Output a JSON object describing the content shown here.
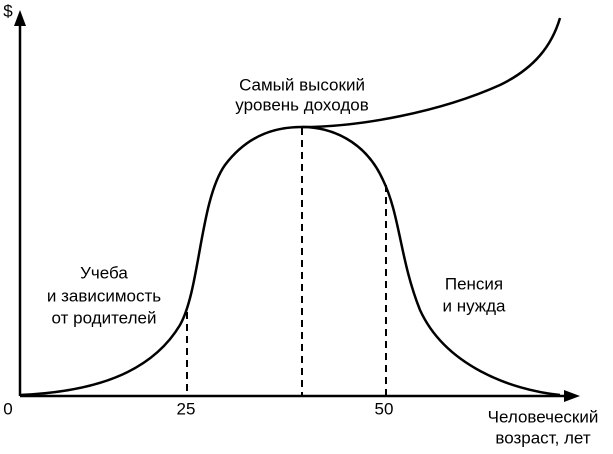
{
  "axes": {
    "y_label": "$",
    "x_label": [
      "Человеческий",
      "возраст, лет"
    ],
    "ticks": [
      "0",
      "25",
      "50"
    ]
  },
  "annotations": {
    "peak": [
      "Самый высокий",
      "уровень доходов"
    ],
    "study": [
      "Учеба",
      "и зависимость",
      "от родителей"
    ],
    "retirement": [
      "Пенсия",
      "и нужда"
    ]
  }
}
